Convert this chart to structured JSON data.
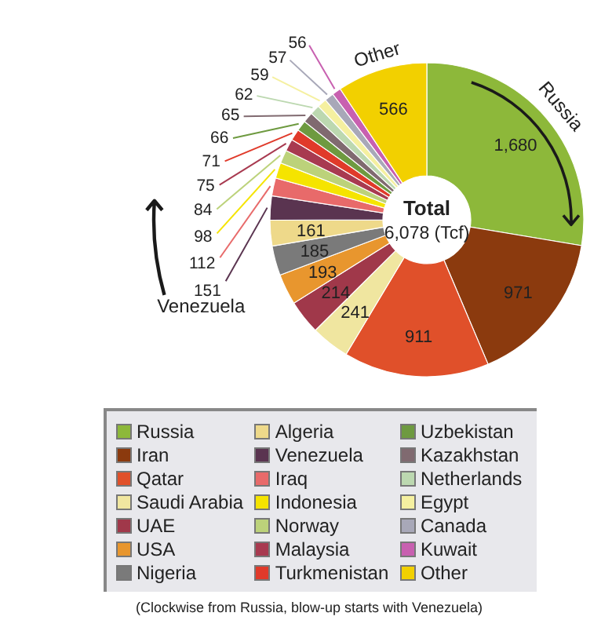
{
  "chart_data": {
    "type": "donut",
    "categories": [
      "Russia",
      "Iran",
      "Qatar",
      "Saudi Arabia",
      "UAE",
      "USA",
      "Nigeria",
      "Algeria",
      "Venezuela",
      "Iraq",
      "Indonesia",
      "Norway",
      "Malaysia",
      "Turkmenistan",
      "Uzbekistan",
      "Kazakhstan",
      "Netherlands",
      "Egypt",
      "Canada",
      "Kuwait",
      "Other"
    ],
    "values": [
      1680,
      971,
      911,
      241,
      214,
      193,
      185,
      161,
      151,
      112,
      98,
      84,
      75,
      71,
      66,
      65,
      62,
      59,
      57,
      56,
      566
    ],
    "value_labels": [
      "1,680",
      "971",
      "911",
      "241",
      "214",
      "193",
      "185",
      "161",
      "151",
      "112",
      "98",
      "84",
      "75",
      "71",
      "66",
      "65",
      "62",
      "59",
      "57",
      "56",
      "566"
    ],
    "colors": [
      "#8db83a",
      "#8b3a0e",
      "#e0502a",
      "#f0e6a0",
      "#a0384a",
      "#e8962e",
      "#7a7a7a",
      "#eed98a",
      "#5a3450",
      "#e86a6a",
      "#f5e400",
      "#bcd27a",
      "#a83a50",
      "#e03a2a",
      "#6e9a40",
      "#806a70",
      "#bcd8b0",
      "#f5f0a0",
      "#a8a8b8",
      "#c860b0",
      "#f2d000"
    ],
    "legend": "bottom",
    "annotations": [
      "Total 6,078 (Tcf)",
      "(Clockwise from Russia, blow-up starts with Venezuela)"
    ]
  }
}
